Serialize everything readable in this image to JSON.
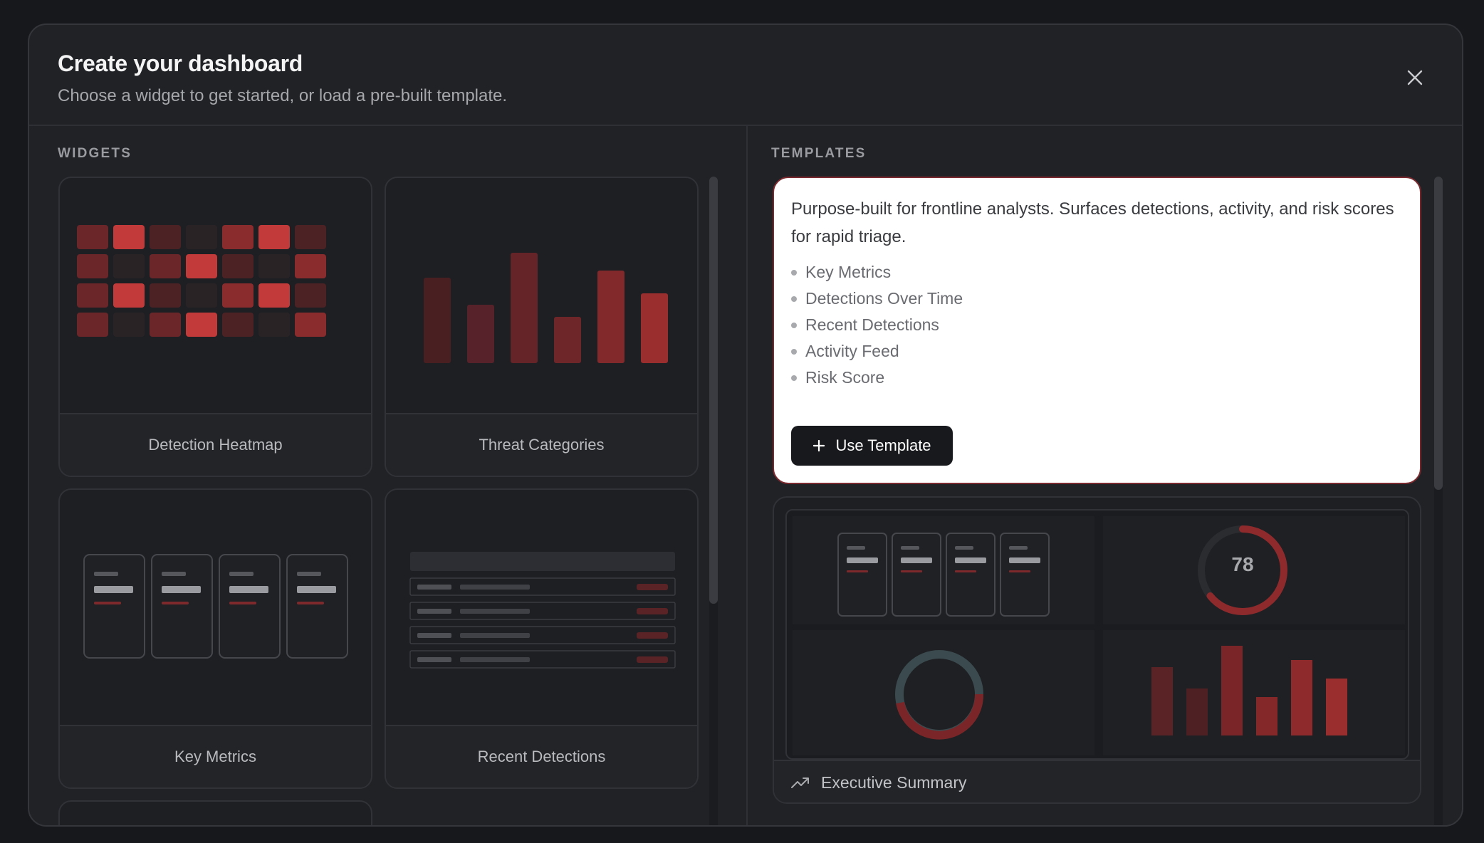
{
  "dialog": {
    "title": "Create your dashboard",
    "subtitle": "Choose a widget to get started, or load a pre-built template."
  },
  "widgets_section": {
    "label": "WIDGETS",
    "items": [
      {
        "label": "Detection Heatmap",
        "icon": "heatmap-preview"
      },
      {
        "label": "Threat Categories",
        "icon": "bar-chart-preview"
      },
      {
        "label": "Key Metrics",
        "icon": "metric-cards-preview"
      },
      {
        "label": "Recent Detections",
        "icon": "table-preview"
      }
    ]
  },
  "templates_section": {
    "label": "TEMPLATES",
    "featured": {
      "description": "Purpose-built for frontline analysts. Surfaces detections, activity, and risk scores for rapid triage.",
      "items": [
        "Key Metrics",
        "Detections Over Time",
        "Recent Detections",
        "Activity Feed",
        "Risk Score"
      ],
      "button_label": "Use Template"
    },
    "executive": {
      "name": "Executive Summary",
      "icon": "trending-up-icon",
      "gauge_value": "78"
    }
  },
  "colors": {
    "accent": "#c43a3a",
    "dark_red": "#5a2326",
    "bg": "#202226"
  }
}
